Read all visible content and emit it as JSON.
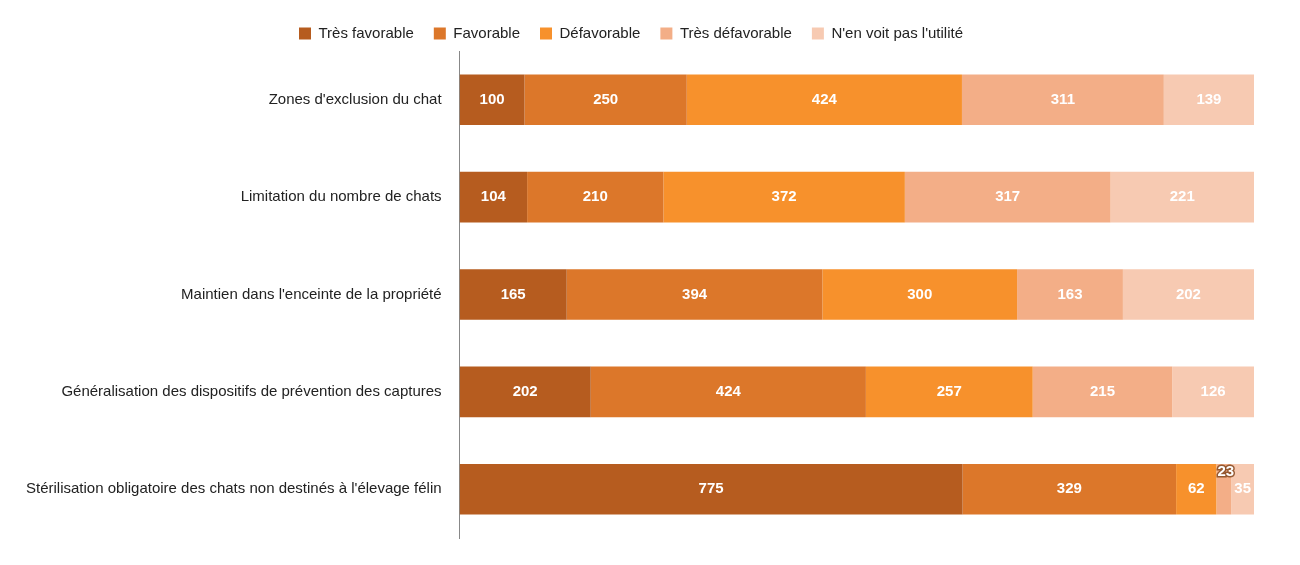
{
  "chart_data": {
    "type": "bar",
    "orientation": "horizontal",
    "stacked": true,
    "data_labels": true,
    "grid": false,
    "legend": "top",
    "tick_labels": "y",
    "xlim": [
      0,
      1224
    ],
    "categories": [
      "Zones d'exclusion du chat",
      "Limitation du nombre de chats",
      "Maintien dans l'enceinte de la propriété",
      "Généralisation des dispositifs de prévention des captures",
      "Stérilisation obligatoire des chats non destinés à l'élevage félin"
    ],
    "series": [
      {
        "name": "Très favorable",
        "color": "#b65c1f",
        "values": [
          100,
          104,
          165,
          202,
          775
        ]
      },
      {
        "name": "Favorable",
        "color": "#dc772a",
        "values": [
          250,
          210,
          394,
          424,
          329
        ]
      },
      {
        "name": "Défavorable",
        "color": "#f7912c",
        "values": [
          424,
          372,
          300,
          257,
          62
        ]
      },
      {
        "name": "Très défavorable",
        "color": "#f3ae87",
        "values": [
          311,
          317,
          163,
          215,
          23
        ]
      },
      {
        "name": "N'en voit pas l'utilité",
        "color": "#f7cab2",
        "values": [
          139,
          221,
          202,
          126,
          35
        ]
      }
    ]
  }
}
